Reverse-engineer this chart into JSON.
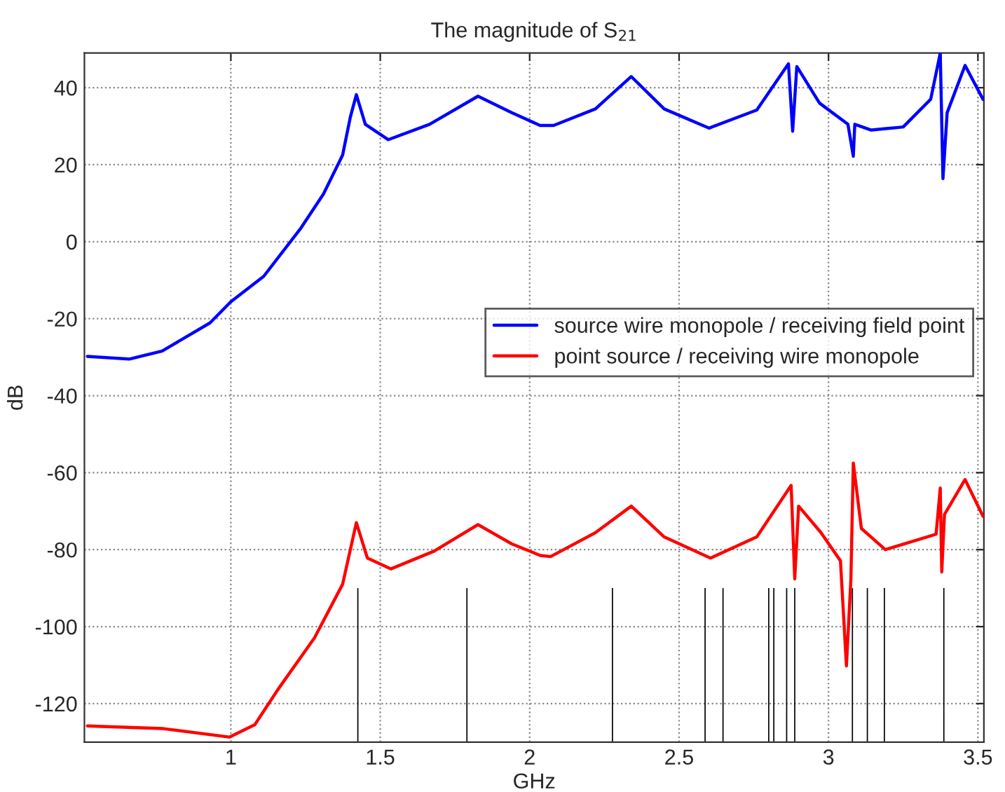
{
  "chart_data": {
    "type": "line",
    "title": "The magnitude of S$_{21}$",
    "xlabel": "GHz",
    "ylabel": "dB",
    "xlim": [
      0.51,
      3.52
    ],
    "ylim": [
      -130,
      49
    ],
    "xticks": [
      1,
      1.5,
      2,
      2.5,
      3,
      3.5
    ],
    "yticks": [
      -120,
      -100,
      -80,
      -60,
      -40,
      -20,
      0,
      20,
      40
    ],
    "grid": true,
    "legend": "center right",
    "series": [
      {
        "name": "source wire monopole / receiving field point",
        "color": "#0000ff",
        "x": [
          0.52,
          0.66,
          0.77,
          0.93,
          1.0,
          1.11,
          1.235,
          1.31,
          1.374,
          1.4,
          1.42,
          1.45,
          1.527,
          1.665,
          1.827,
          1.94,
          2.035,
          2.08,
          2.22,
          2.34,
          2.45,
          2.6,
          2.76,
          2.866,
          2.88,
          2.894,
          2.97,
          3.065,
          3.083,
          3.088,
          3.143,
          3.25,
          3.342,
          3.374,
          3.383,
          3.397,
          3.457,
          3.517
        ],
        "values": [
          -29.8,
          -30.5,
          -28.4,
          -21.1,
          -15.6,
          -9,
          3.6,
          12.4,
          22.5,
          32.4,
          38.2,
          30.5,
          26.5,
          30.5,
          37.8,
          33.5,
          30.2,
          30.2,
          34.5,
          42.9,
          34.5,
          29.5,
          34.2,
          46.2,
          28.7,
          45.5,
          36,
          30.5,
          22.2,
          30.5,
          29,
          29.8,
          37,
          49,
          16.4,
          33.5,
          45.8,
          37
        ]
      },
      {
        "name": "point source / receiving wire monopole",
        "color": "#ff0000",
        "x": [
          0.52,
          0.774,
          0.995,
          1.08,
          1.157,
          1.28,
          1.374,
          1.42,
          1.457,
          1.536,
          1.68,
          1.827,
          1.94,
          2.035,
          2.07,
          2.22,
          2.34,
          2.45,
          2.605,
          2.76,
          2.875,
          2.887,
          2.9,
          2.975,
          3.04,
          3.06,
          3.075,
          3.083,
          3.11,
          3.19,
          3.36,
          3.374,
          3.379,
          3.388,
          3.457,
          3.517
        ],
        "values": [
          -125.8,
          -126.5,
          -128.7,
          -125.5,
          -116.4,
          -102.9,
          -89,
          -73,
          -82.2,
          -85,
          -80.4,
          -73.5,
          -78.5,
          -81.5,
          -81.8,
          -75.6,
          -68.7,
          -76.7,
          -82.2,
          -76.7,
          -63.3,
          -87.6,
          -68.7,
          -75.6,
          -82.9,
          -110.2,
          -87.6,
          -57.5,
          -74.5,
          -80,
          -76,
          -64,
          -85.8,
          -70.9,
          -61.8,
          -71.3
        ]
      },
      {
        "type": "bar",
        "color": "#000000",
        "x": [
          1.425,
          1.79,
          2.277,
          2.587,
          2.647,
          2.8,
          2.817,
          2.86,
          2.887,
          3.08,
          3.13,
          3.187,
          3.386
        ],
        "base": [
          -130,
          -130,
          -130,
          -130,
          -130,
          -130,
          -130,
          -130,
          -130,
          -130,
          -130,
          -130,
          -130
        ],
        "values": [
          40,
          40,
          40,
          40,
          40,
          40,
          40,
          40,
          40,
          40,
          40,
          40,
          40
        ]
      }
    ]
  }
}
